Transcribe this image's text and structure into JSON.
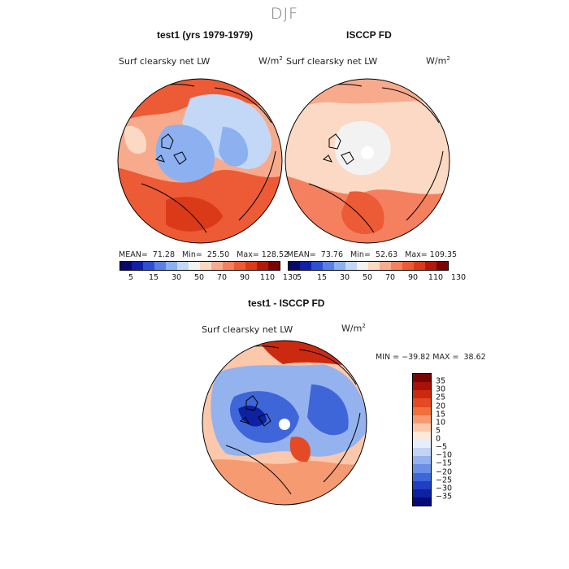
{
  "season": "DJF",
  "panels": [
    {
      "title": "test1 (yrs 1979-1979)",
      "variable": "Surf clearsky net LW",
      "units_base": "W/m",
      "units_exp": "2",
      "stats": "MEAN=  71.28   Min=  25.50   Max= 128.52"
    },
    {
      "title": "ISCCP FD",
      "variable": "Surf clearsky net LW",
      "units_base": "W/m",
      "units_exp": "2",
      "stats": "MEAN=  73.76   Min=  52.63   Max= 109.35"
    }
  ],
  "diff_panel": {
    "title": "test1 - ISCCP FD",
    "variable": "Surf clearsky net LW",
    "units_base": "W/m",
    "units_exp": "2",
    "stats": "MIN = −39.82 MAX =  38.62"
  },
  "abs_colorbar": {
    "colors": [
      "#08086b",
      "#1020a8",
      "#2f4fd6",
      "#5a80e6",
      "#8cb0f0",
      "#c2d8f6",
      "#f2f2f2",
      "#fcd9c4",
      "#f8ab8c",
      "#f4805f",
      "#ec5a36",
      "#da3a18",
      "#b41808",
      "#7a0404"
    ],
    "labels": [
      "5",
      "15",
      "30",
      "50",
      "70",
      "90",
      "110",
      "130"
    ]
  },
  "diff_colorbar": {
    "colors": [
      "#7a0404",
      "#a81208",
      "#cc2a10",
      "#e44a24",
      "#f0703f",
      "#f69a72",
      "#fbc8ac",
      "#fde8dc",
      "#e6eefc",
      "#c2d4f6",
      "#94b2ee",
      "#6a8fe4",
      "#3f66d8",
      "#1f40c0",
      "#0d22a0",
      "#060a7a"
    ],
    "labels": [
      "35",
      "30",
      "25",
      "20",
      "15",
      "10",
      "5",
      "0",
      "−5",
      "−10",
      "−15",
      "−20",
      "−25",
      "−30",
      "−35"
    ]
  }
}
